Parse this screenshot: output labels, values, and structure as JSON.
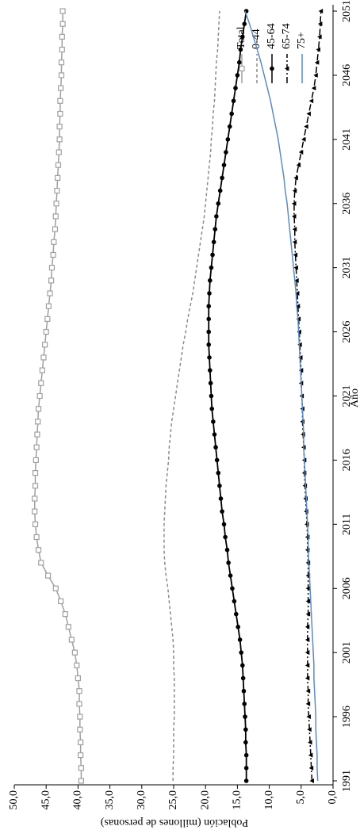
{
  "chart_data": {
    "type": "line",
    "x_label": "Año",
    "y_label": "Población (millones de personas)",
    "x": [
      1991,
      1992,
      1993,
      1994,
      1995,
      1996,
      1997,
      1998,
      1999,
      2000,
      2001,
      2002,
      2003,
      2004,
      2005,
      2006,
      2007,
      2008,
      2009,
      2010,
      2011,
      2012,
      2013,
      2014,
      2015,
      2016,
      2017,
      2018,
      2019,
      2020,
      2021,
      2022,
      2023,
      2024,
      2025,
      2026,
      2027,
      2028,
      2029,
      2030,
      2031,
      2032,
      2033,
      2034,
      2035,
      2036,
      2037,
      2038,
      2039,
      2040,
      2041,
      2042,
      2043,
      2044,
      2045,
      2046,
      2047,
      2048,
      2049,
      2050,
      2051
    ],
    "xlim": [
      1991,
      2051
    ],
    "xticks": [
      1991,
      1996,
      2001,
      2006,
      2011,
      2016,
      2021,
      2026,
      2031,
      2036,
      2041,
      2046,
      2051
    ],
    "ylim": [
      0,
      50
    ],
    "yticks": [
      {
        "value": 0,
        "label": "0,0"
      },
      {
        "value": 5,
        "label": "5,0"
      },
      {
        "value": 10,
        "label": "10,0"
      },
      {
        "value": 15,
        "label": "15,0"
      },
      {
        "value": 20,
        "label": "20,0"
      },
      {
        "value": 25,
        "label": "25,0"
      },
      {
        "value": 30,
        "label": "30,0"
      },
      {
        "value": 35,
        "label": "35,0"
      },
      {
        "value": 40,
        "label": "40,0"
      },
      {
        "value": 45,
        "label": "45,0"
      },
      {
        "value": 50,
        "label": "50,0"
      }
    ],
    "series": [
      {
        "name": "Total",
        "color": "#a0a0a0",
        "marker": "square",
        "dash": "none",
        "values": [
          39.5,
          39.5,
          39.6,
          39.6,
          39.7,
          39.7,
          39.8,
          39.8,
          40.0,
          40.2,
          40.5,
          41.0,
          41.5,
          42.0,
          42.7,
          43.5,
          44.7,
          45.8,
          46.2,
          46.5,
          46.7,
          46.8,
          46.8,
          46.7,
          46.7,
          46.6,
          46.5,
          46.4,
          46.3,
          46.2,
          46.0,
          45.8,
          45.6,
          45.4,
          45.2,
          45.0,
          44.8,
          44.6,
          44.4,
          44.2,
          44.1,
          43.9,
          43.8,
          43.6,
          43.5,
          43.4,
          43.3,
          43.2,
          43.1,
          43.0,
          42.9,
          42.9,
          42.8,
          42.8,
          42.7,
          42.6,
          42.6,
          42.5,
          42.5,
          42.4,
          42.4
        ]
      },
      {
        "name": "0-44",
        "color": "#8c8c8c",
        "marker": "none",
        "dash": "4 3",
        "values": [
          25.1,
          25.1,
          25.0,
          25.0,
          25.0,
          24.9,
          24.9,
          24.9,
          24.9,
          25.0,
          25.0,
          25.1,
          25.3,
          25.5,
          25.7,
          25.9,
          26.2,
          26.4,
          26.5,
          26.5,
          26.5,
          26.4,
          26.3,
          26.2,
          26.0,
          25.8,
          25.7,
          25.5,
          25.3,
          25.0,
          24.7,
          24.4,
          24.1,
          23.8,
          23.5,
          23.1,
          22.8,
          22.4,
          22.0,
          21.7,
          21.4,
          21.1,
          20.8,
          20.5,
          20.2,
          20.0,
          19.8,
          19.6,
          19.4,
          19.2,
          19.1,
          18.9,
          18.8,
          18.6,
          18.5,
          18.4,
          18.3,
          18.1,
          18.0,
          17.9,
          17.8
        ]
      },
      {
        "name": "45-64",
        "color": "#000000",
        "marker": "circle",
        "dash": "none",
        "values": [
          13.6,
          13.6,
          13.6,
          13.7,
          13.7,
          13.8,
          13.9,
          14.0,
          14.1,
          14.2,
          14.4,
          14.6,
          14.9,
          15.2,
          15.5,
          15.8,
          16.1,
          16.4,
          16.6,
          16.9,
          17.1,
          17.4,
          17.6,
          17.8,
          18.0,
          18.2,
          18.4,
          18.6,
          18.8,
          19.0,
          19.1,
          19.2,
          19.3,
          19.4,
          19.5,
          19.5,
          19.5,
          19.5,
          19.4,
          19.3,
          19.1,
          18.9,
          18.7,
          18.5,
          18.3,
          18.0,
          17.7,
          17.4,
          17.1,
          16.8,
          16.5,
          16.2,
          15.9,
          15.6,
          15.3,
          15.0,
          14.7,
          14.5,
          14.2,
          13.9,
          13.6
        ]
      },
      {
        "name": "65-74",
        "color": "#000000",
        "marker": "triangle",
        "dash": "8 3 2 3",
        "values": [
          3.3,
          3.4,
          3.5,
          3.6,
          3.7,
          3.8,
          3.9,
          3.9,
          4.0,
          4.0,
          4.0,
          4.0,
          4.0,
          3.9,
          3.9,
          3.9,
          3.9,
          3.9,
          4.0,
          4.0,
          4.1,
          4.2,
          4.3,
          4.4,
          4.5,
          4.5,
          4.6,
          4.7,
          4.8,
          4.8,
          4.9,
          5.0,
          5.0,
          5.1,
          5.2,
          5.3,
          5.4,
          5.5,
          5.6,
          5.7,
          5.8,
          5.9,
          6.0,
          6.0,
          6.1,
          6.1,
          6.0,
          5.8,
          5.4,
          5.0,
          4.6,
          4.2,
          3.8,
          3.4,
          3.0,
          2.7,
          2.5,
          2.3,
          2.1,
          2.0,
          1.9
        ]
      },
      {
        "name": "75+",
        "color": "#5b8ac6",
        "marker": "none",
        "dash": "none",
        "values": [
          2.4,
          2.5,
          2.5,
          2.6,
          2.7,
          2.7,
          2.8,
          2.9,
          3.0,
          3.0,
          3.1,
          3.2,
          3.3,
          3.4,
          3.5,
          3.6,
          3.7,
          3.8,
          3.9,
          3.9,
          4.0,
          4.1,
          4.2,
          4.3,
          4.4,
          4.5,
          4.6,
          4.6,
          4.7,
          4.8,
          4.9,
          5.0,
          5.1,
          5.2,
          5.3,
          5.4,
          5.5,
          5.7,
          5.8,
          6.0,
          6.2,
          6.4,
          6.6,
          6.8,
          7.0,
          7.2,
          7.5,
          7.7,
          8.0,
          8.3,
          8.6,
          9.0,
          9.4,
          9.8,
          10.3,
          10.8,
          11.3,
          11.9,
          12.5,
          13.1,
          13.8
        ]
      }
    ]
  }
}
